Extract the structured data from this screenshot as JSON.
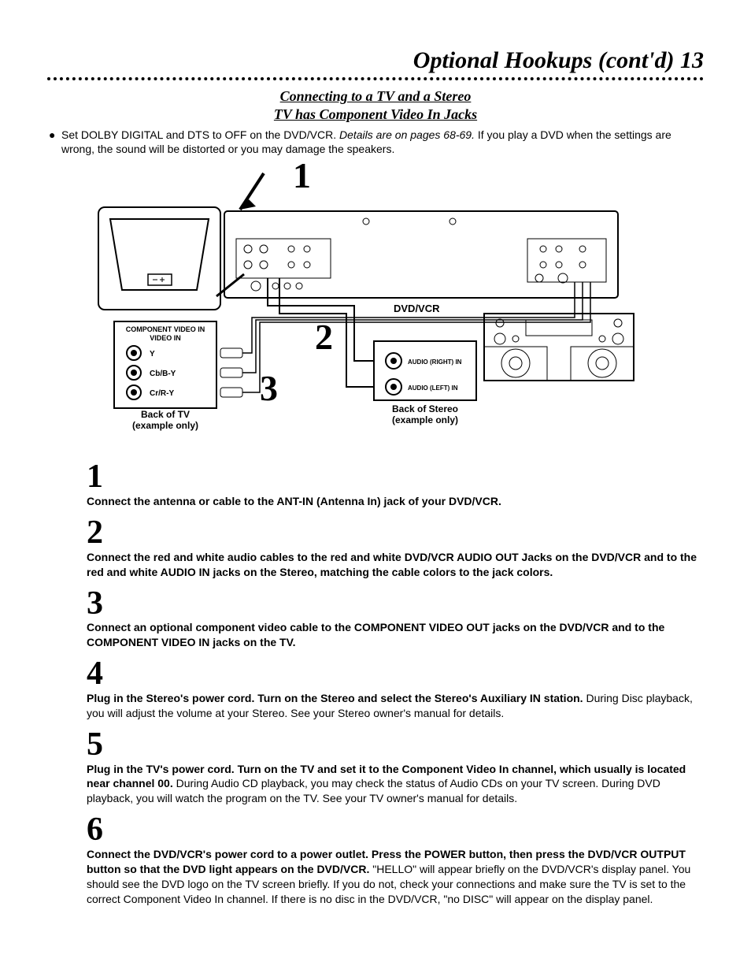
{
  "header": {
    "title": "Optional Hookups (cont'd)  13"
  },
  "subtitle1": "Connecting to a TV and a Stereo",
  "subtitle2": "TV has Component Video In Jacks",
  "intro_bold": "Set DOLBY DIGITAL and DTS to OFF on the DVD/VCR.",
  "intro_italic": " Details are on pages 68-69.",
  "intro_rest": " If you play a DVD when the settings are wrong, the sound will be distorted or you may damage the speakers.",
  "diagram": {
    "labels": {
      "dvdvcr": "DVD/VCR",
      "component": "COMPONENT VIDEO IN",
      "y": "Y",
      "cb": "Cb/B-Y",
      "cr": "Cr/R-Y",
      "back_tv": "Back of TV",
      "back_tv_sub": "(example only)",
      "audio_r": "AUDIO (RIGHT) IN",
      "audio_l": "AUDIO (LEFT) IN",
      "back_stereo": "Back of Stereo",
      "back_stereo_sub": "(example only)",
      "num1": "1",
      "num2": "2",
      "num3": "3"
    },
    "colors": {
      "stroke": "#000000",
      "fill": "#ffffff"
    }
  },
  "steps": [
    {
      "num": "1",
      "bold": "Connect the antenna or cable to the ANT-IN (Antenna In) jack of your DVD/VCR.",
      "plain": ""
    },
    {
      "num": "2",
      "bold": "Connect the red and white audio cables to the red and white DVD/VCR AUDIO OUT Jacks on the DVD/VCR and to the red and white AUDIO IN jacks on the Stereo, matching the cable colors to the jack colors.",
      "plain": ""
    },
    {
      "num": "3",
      "bold": "Connect an optional component video cable to the COMPONENT VIDEO OUT jacks on the DVD/VCR and to the COMPONENT VIDEO IN jacks on the TV.",
      "plain": ""
    },
    {
      "num": "4",
      "bold": "Plug in the Stereo's power cord. Turn on the Stereo and select the Stereo's Auxiliary IN station.",
      "plain": " During Disc playback, you will adjust the volume at your Stereo. See your Stereo owner's manual for details."
    },
    {
      "num": "5",
      "bold": "Plug in the TV's power cord. Turn on the TV and set it to the Component Video In channel, which usually is located near channel 00.",
      "plain": " During Audio CD playback, you may check the status of Audio CDs on your TV screen. During DVD playback, you will watch the program on the TV. See your TV owner's manual for details."
    },
    {
      "num": "6",
      "bold": "Connect the DVD/VCR's power cord to a power outlet. Press the POWER button, then press the DVD/VCR OUTPUT button so that the DVD light appears on the DVD/VCR.",
      "plain": " \"HELLO\" will appear briefly on the DVD/VCR's display panel. You should see the DVD logo on the TV screen briefly. If you do not, check your connections and make sure the TV is set to the correct Component Video In channel. If there is no disc in the DVD/VCR, \"no DISC\" will appear on the display panel."
    }
  ]
}
